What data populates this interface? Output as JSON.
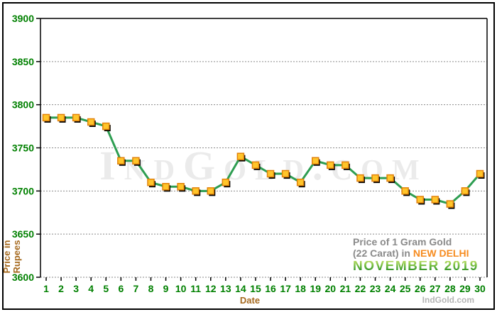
{
  "chart_data": {
    "type": "line",
    "title": "Price of 1 Gram Gold (22 Carat) in NEW DELHI - NOVEMBER 2019",
    "xlabel": "Date",
    "ylabel": "Price in Rupees",
    "categories": [
      1,
      2,
      3,
      4,
      5,
      6,
      7,
      8,
      9,
      10,
      11,
      12,
      13,
      14,
      15,
      16,
      17,
      18,
      19,
      20,
      21,
      22,
      23,
      24,
      25,
      26,
      27,
      28,
      29,
      30
    ],
    "series": [
      {
        "name": "Gold price per 1 gram (22 carat), Rupees",
        "values": [
          3785,
          3785,
          3785,
          3780,
          3775,
          3735,
          3735,
          3710,
          3705,
          3705,
          3700,
          3700,
          3710,
          3740,
          3730,
          3720,
          3720,
          3710,
          3735,
          3730,
          3730,
          3715,
          3715,
          3715,
          3700,
          3690,
          3690,
          3685,
          3700,
          3720
        ]
      }
    ],
    "ylim": [
      3600,
      3900
    ],
    "yticks": [
      3900,
      3850,
      3800,
      3750,
      3700,
      3650,
      3600
    ],
    "grid": "horizontal dotted gridlines every 50 rupees",
    "legend": "none",
    "colors": {
      "line": "#2E9E52",
      "marker_fill": "#FFC52A",
      "marker_border": "#E2820A",
      "marker_shadow": "#000000",
      "tick_labels": "#008000",
      "axis_titles": "#A5691E",
      "axis_line": "#000000",
      "gridline": "#8a8a8a"
    }
  },
  "axes": {
    "ylabel_line1": "Price in",
    "ylabel_line2": "Rupees",
    "xlabel": "Date"
  },
  "caption": {
    "line1": "Price of 1 Gram Gold",
    "line2_prefix": "(22 Carat) in",
    "location": "NEW DELHI",
    "month_year": "NOVEMBER 2019",
    "location_color": "#F68B1F",
    "month_color": "#4a9e2a"
  },
  "watermark": {
    "text": "IndGold.com"
  },
  "credit": {
    "text": "IndGold.com"
  }
}
